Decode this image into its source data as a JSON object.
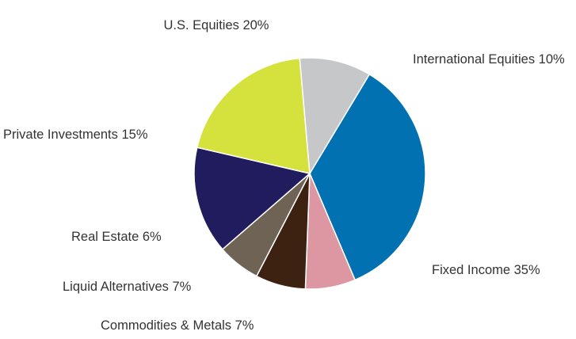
{
  "chart_data": {
    "type": "pie",
    "title": "",
    "slices": [
      {
        "label": "Fixed Income",
        "value": 35,
        "display": "Fixed Income 35%",
        "color": "#0171b1"
      },
      {
        "label": "Commodities & Metals",
        "value": 7,
        "display": "Commodities & Metals 7%",
        "color": "#dc97a3"
      },
      {
        "label": "Liquid Alternatives",
        "value": 7,
        "display": "Liquid Alternatives 7%",
        "color": "#3d2212"
      },
      {
        "label": "Real Estate",
        "value": 6,
        "display": "Real Estate 6%",
        "color": "#6e6355"
      },
      {
        "label": "Private Investments",
        "value": 15,
        "display": "Private Investments 15%",
        "color": "#211c5e"
      },
      {
        "label": "U.S. Equities",
        "value": 20,
        "display": "U.S. Equities 20%",
        "color": "#d5e23e"
      },
      {
        "label": "International Equities",
        "value": 10,
        "display": "International Equities 10%",
        "color": "#c6c7c9"
      }
    ]
  }
}
